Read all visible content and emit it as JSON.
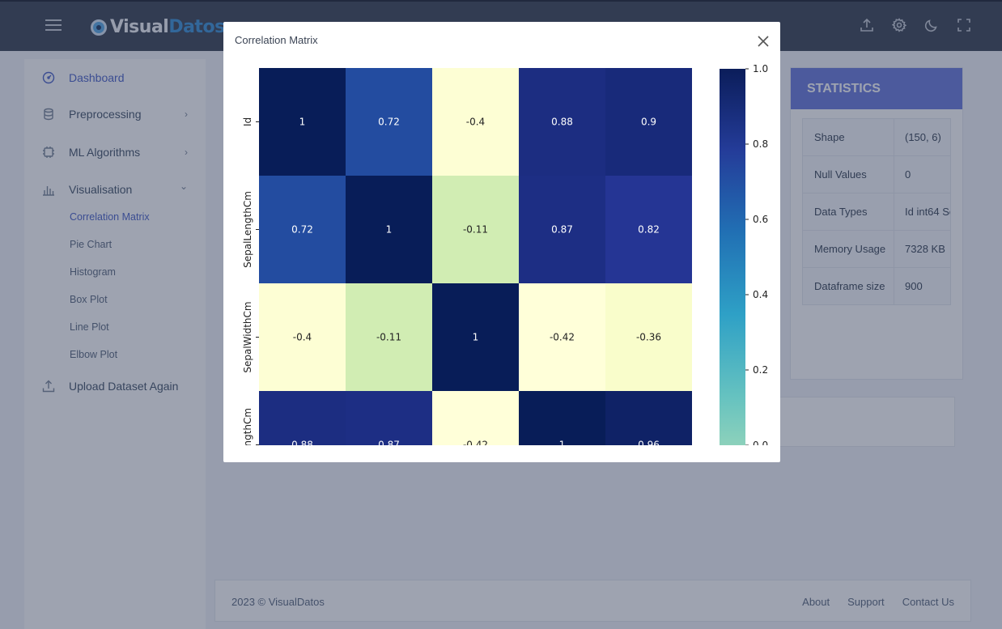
{
  "brand": {
    "part1": "Visual",
    "part2": "Datos"
  },
  "header_icons": [
    "upload-icon",
    "gear-icon",
    "moon-icon",
    "fullscreen-icon"
  ],
  "sidebar": {
    "items": [
      {
        "label": "Dashboard",
        "icon": "dashboard-icon",
        "active": true
      },
      {
        "label": "Preprocessing",
        "icon": "database-icon",
        "chevron": "›"
      },
      {
        "label": "ML Algorithms",
        "icon": "cpu-icon",
        "chevron": "›"
      },
      {
        "label": "Visualisation",
        "icon": "bar-chart-icon",
        "chevron": "⌄"
      },
      {
        "label": "Upload Dataset Again",
        "icon": "upload-icon"
      }
    ],
    "subitems": [
      {
        "label": "Correlation Matrix",
        "active": true
      },
      {
        "label": "Pie Chart"
      },
      {
        "label": "Histogram"
      },
      {
        "label": "Box Plot"
      },
      {
        "label": "Line Plot"
      },
      {
        "label": "Elbow Plot"
      }
    ]
  },
  "stats": {
    "title": "STATISTICS",
    "rows": [
      {
        "key": "Shape",
        "value": "(150, 6)"
      },
      {
        "key": "Null Values",
        "value": "0"
      },
      {
        "key": "Data Types",
        "value": "Id int64 Se"
      },
      {
        "key": "Memory Usage",
        "value": "7328 KB"
      },
      {
        "key": "Dataframe size",
        "value": "900"
      }
    ]
  },
  "footer": {
    "copyright": "2023 © VisualDatos",
    "links": [
      "About",
      "Support",
      "Contact Us"
    ]
  },
  "modal": {
    "title": "Correlation Matrix",
    "close_icon": "close-icon"
  },
  "chart_data": {
    "type": "heatmap",
    "title": "",
    "row_labels": [
      "Id",
      "SepalLengthCm",
      "SepalWidthCm",
      "PetalLengthCm"
    ],
    "col_count": 5,
    "values": [
      [
        1,
        0.72,
        -0.4,
        0.88,
        0.9
      ],
      [
        0.72,
        1,
        -0.11,
        0.87,
        0.82
      ],
      [
        -0.4,
        -0.11,
        1,
        -0.42,
        -0.36
      ],
      [
        0.88,
        0.87,
        -0.42,
        1,
        0.96
      ]
    ],
    "colormap": "YlGnBu",
    "colorbar_ticks": [
      "1.0",
      "0.8",
      "0.6",
      "0.4",
      "0.2",
      "0.0"
    ],
    "colorbar_tick_values": [
      1.0,
      0.8,
      0.6,
      0.4,
      0.2,
      0.0
    ],
    "value_range": [
      -0.42,
      1.0
    ]
  }
}
